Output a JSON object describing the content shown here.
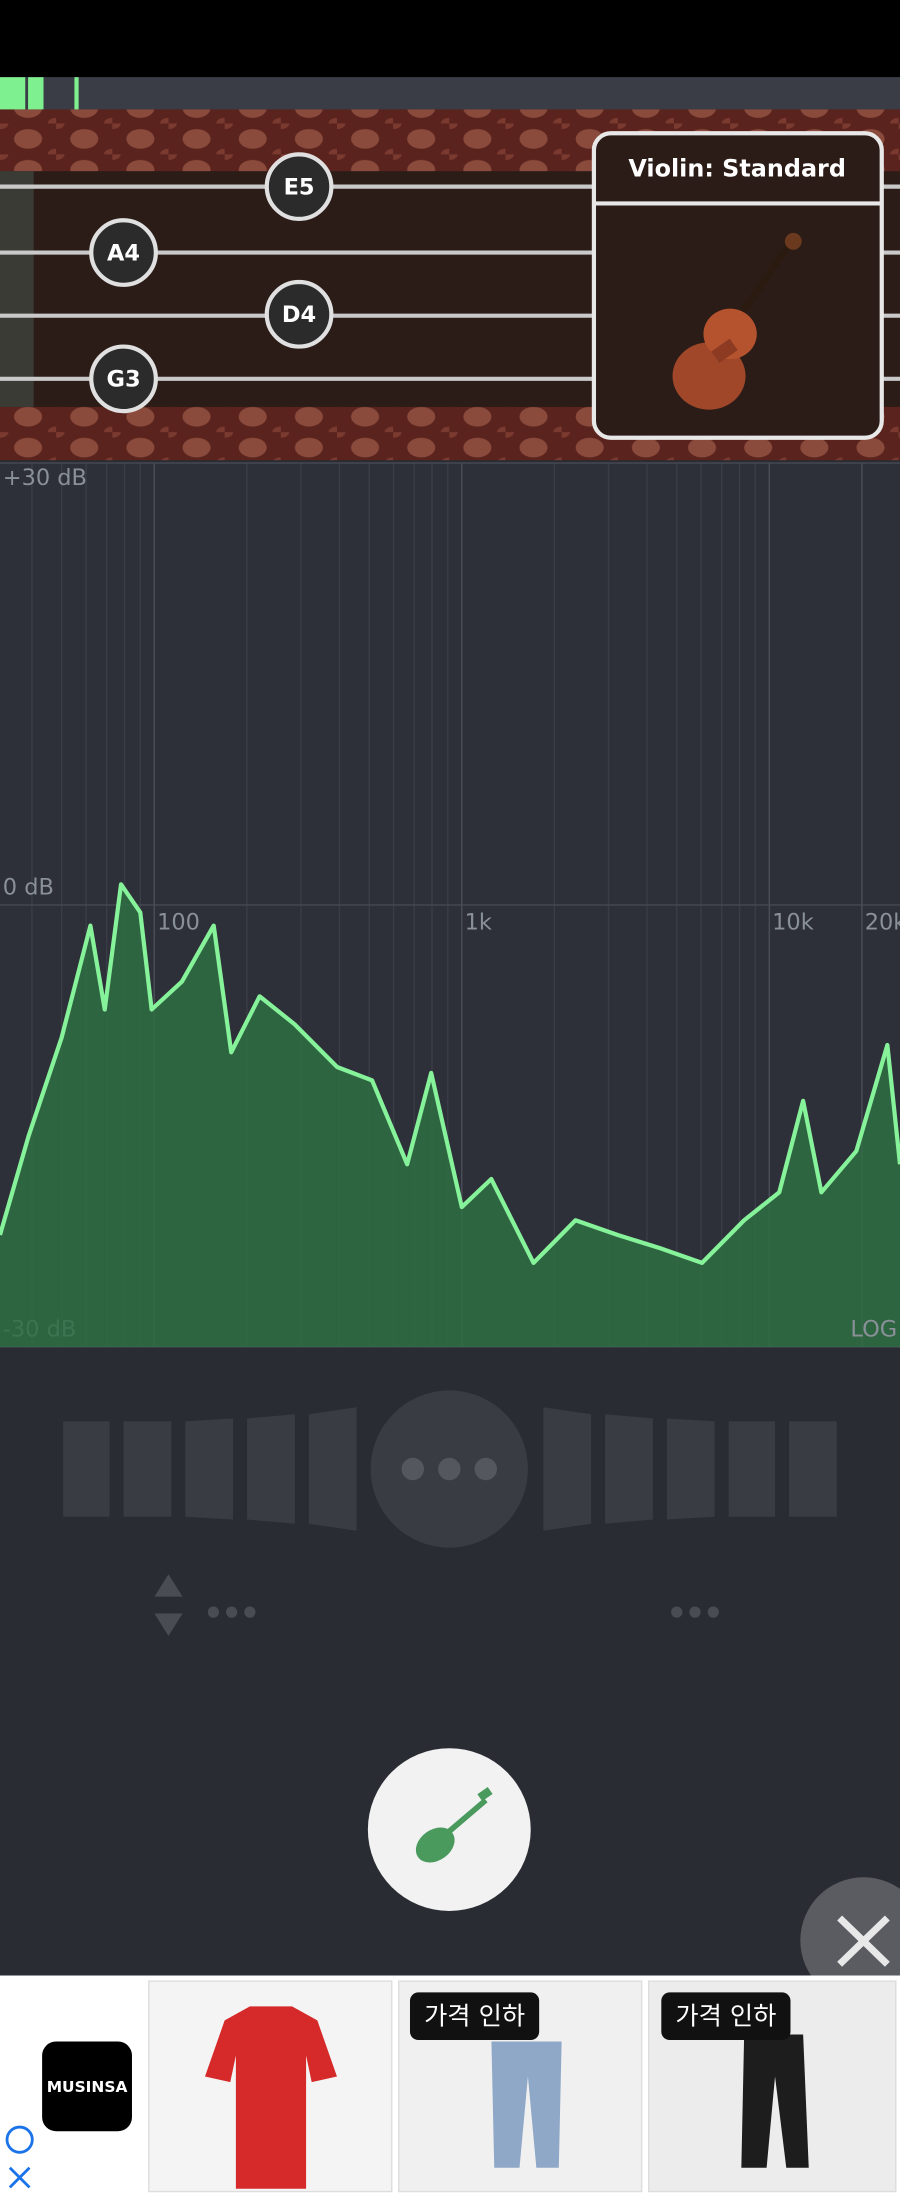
{
  "tuner": {
    "strings": [
      "E5",
      "A4",
      "D4",
      "G3"
    ],
    "instrument": "Violin: Standard"
  },
  "chart_data": {
    "type": "area",
    "x": [
      31.5,
      39,
      50,
      62,
      69,
      78,
      90,
      98,
      123,
      156,
      178,
      220,
      286,
      393,
      511,
      664,
      795,
      1000,
      1247,
      1711,
      2344,
      3214,
      4406,
      6040,
      8283,
      10770,
      12880,
      14760,
      19190,
      24200,
      26600
    ],
    "values": [
      -22.4,
      -15.7,
      -9,
      -1.4,
      -7.1,
      1.4,
      -0.5,
      -7.1,
      -5.2,
      -1.4,
      -10,
      -6.2,
      -8.1,
      -11,
      -11.9,
      -17.6,
      -11.4,
      -20.5,
      -18.6,
      -24.3,
      -21.4,
      -22.4,
      -23.3,
      -24.3,
      -21.4,
      -19.5,
      -13.3,
      -19.5,
      -16.7,
      -9.5,
      -17.6
    ],
    "color": "#86f29a",
    "fill_color": "#2f6f43",
    "xlim": [
      31.5,
      26600
    ],
    "ylim": [
      -30,
      30
    ],
    "xticks": [
      100,
      {
        "value": 1000,
        "label": "1k"
      },
      {
        "value": 10000,
        "label": "10k"
      },
      {
        "value": 20000,
        "label": "20k"
      }
    ],
    "yticks": [
      {
        "value": 30,
        "label": "+30 dB"
      },
      {
        "value": 0,
        "label": "0 dB"
      },
      {
        "value": -30,
        "label": "-30 dB"
      }
    ],
    "xscale": "log",
    "scale_label": "LOG",
    "grid": true
  },
  "ad": {
    "brand": "MUSINSA",
    "badges": [
      "가격 인하",
      "가격 인하"
    ]
  }
}
